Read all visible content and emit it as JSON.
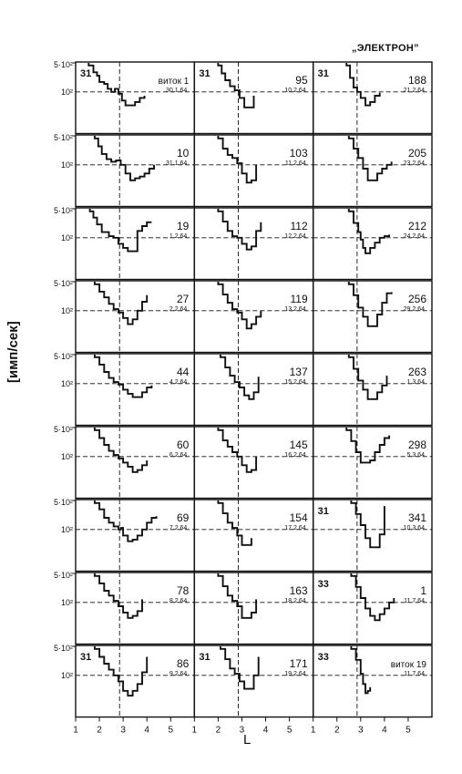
{
  "header": {
    "title": "„ЭЛЕКТРОН”",
    "y_axis_label": "[имп/сек]",
    "x_axis_label": "L",
    "y_tick_upper": "5·10²",
    "y_tick_lower": "10²"
  },
  "styles": {
    "ink": "#111111",
    "paper": "#ffffff"
  },
  "chart_data": {
    "type": "line",
    "layout": "small multiples, 9 rows x 3 columns",
    "xlabel": "L",
    "ylabel": "[имп/сек]",
    "xlim": [
      1,
      6
    ],
    "x_ticks_printed": [
      "1",
      "2",
      "3",
      "4",
      "5",
      "1",
      "2",
      "3",
      "4",
      "5",
      "1",
      "2",
      "3",
      "4",
      "5"
    ],
    "y_scale": "log",
    "ylim": [
      10,
      500
    ],
    "y_ticks": [
      "5·10²",
      "10²"
    ],
    "reference_lines": {
      "horizontal_y": 100,
      "vertical_x": 2.85
    },
    "panels": [
      {
        "orbit": "виток 1",
        "date": "30.1.64",
        "corner": "31",
        "x": [
          1.55,
          1.65,
          1.75,
          1.9,
          2.0,
          2.2,
          2.35,
          2.5,
          2.65,
          2.8,
          2.95,
          3.1,
          3.3,
          3.5,
          3.7,
          3.9
        ],
        "y": [
          480,
          480,
          320,
          260,
          180,
          160,
          120,
          100,
          120,
          90,
          60,
          45,
          45,
          55,
          70,
          80
        ]
      },
      {
        "orbit": "95",
        "date": "10.2.64",
        "corner": "31",
        "x": [
          2.0,
          2.15,
          2.3,
          2.5,
          2.7,
          2.9,
          3.1,
          3.3,
          3.5
        ],
        "y": [
          480,
          300,
          200,
          140,
          110,
          70,
          40,
          40,
          80
        ]
      },
      {
        "orbit": "188",
        "date": "21.2.64",
        "corner": "31",
        "x": [
          2.4,
          2.55,
          2.7,
          2.85,
          3.0,
          3.2,
          3.4,
          3.6,
          3.8
        ],
        "y": [
          480,
          230,
          130,
          100,
          70,
          45,
          55,
          80,
          95
        ]
      },
      {
        "orbit": "10",
        "date": "31.1.64",
        "corner": "",
        "x": [
          1.8,
          1.95,
          2.1,
          2.3,
          2.5,
          2.7,
          2.9,
          3.1,
          3.3,
          3.5,
          3.7,
          3.9,
          4.1,
          4.3
        ],
        "y": [
          480,
          300,
          190,
          140,
          120,
          130,
          100,
          60,
          40,
          45,
          50,
          60,
          80,
          100
        ]
      },
      {
        "orbit": "103",
        "date": "11.2.64",
        "corner": "",
        "x": [
          2.0,
          2.2,
          2.4,
          2.6,
          2.8,
          3.0,
          3.2,
          3.4,
          3.6
        ],
        "y": [
          480,
          260,
          180,
          150,
          110,
          60,
          35,
          40,
          100
        ]
      },
      {
        "orbit": "205",
        "date": "23.2.64",
        "corner": "",
        "x": [
          2.5,
          2.7,
          2.9,
          3.1,
          3.3,
          3.5,
          3.7,
          3.9,
          4.1,
          4.3
        ],
        "y": [
          480,
          260,
          150,
          80,
          40,
          40,
          60,
          80,
          100,
          120
        ]
      },
      {
        "orbit": "19",
        "date": "1.2.64",
        "corner": "",
        "x": [
          1.6,
          1.75,
          1.9,
          2.1,
          2.4,
          2.6,
          2.8,
          3.0,
          3.2,
          3.4,
          3.6,
          3.8,
          4.0,
          4.2
        ],
        "y": [
          480,
          330,
          220,
          140,
          110,
          100,
          70,
          55,
          45,
          45,
          150,
          200,
          250,
          250
        ]
      },
      {
        "orbit": "112",
        "date": "12.2.64",
        "corner": "",
        "x": [
          2.0,
          2.2,
          2.4,
          2.6,
          2.8,
          3.0,
          3.2,
          3.4,
          3.6,
          3.8
        ],
        "y": [
          480,
          260,
          150,
          110,
          100,
          70,
          50,
          60,
          150,
          250
        ]
      },
      {
        "orbit": "212",
        "date": "24.2.64",
        "corner": "",
        "x": [
          2.5,
          2.7,
          2.9,
          3.0,
          3.1,
          3.2,
          3.4,
          3.6,
          3.8,
          4.0,
          4.2
        ],
        "y": [
          480,
          240,
          140,
          90,
          55,
          40,
          55,
          75,
          100,
          110,
          120
        ]
      },
      {
        "orbit": "27",
        "date": "2.2.64",
        "corner": "",
        "x": [
          1.8,
          2.0,
          2.2,
          2.4,
          2.6,
          2.8,
          3.0,
          3.2,
          3.4,
          3.6,
          3.8,
          4.0
        ],
        "y": [
          480,
          310,
          220,
          150,
          110,
          90,
          65,
          45,
          60,
          100,
          170,
          250
        ]
      },
      {
        "orbit": "119",
        "date": "13.2.64",
        "corner": "",
        "x": [
          2.0,
          2.2,
          2.4,
          2.6,
          2.8,
          3.0,
          3.2,
          3.4,
          3.6,
          3.8
        ],
        "y": [
          480,
          260,
          160,
          110,
          90,
          60,
          35,
          45,
          70,
          100
        ]
      },
      {
        "orbit": "256",
        "date": "29.2.64",
        "corner": "",
        "x": [
          2.5,
          2.7,
          2.9,
          3.1,
          3.3,
          3.5,
          3.7,
          3.9,
          4.1,
          4.3
        ],
        "y": [
          480,
          250,
          120,
          70,
          40,
          40,
          80,
          160,
          280,
          300
        ]
      },
      {
        "orbit": "44",
        "date": "4.2.64",
        "corner": "",
        "x": [
          1.8,
          2.0,
          2.2,
          2.4,
          2.6,
          2.8,
          3.0,
          3.2,
          3.4,
          3.6,
          3.8,
          4.0,
          4.2
        ],
        "y": [
          480,
          310,
          200,
          140,
          110,
          95,
          70,
          55,
          45,
          45,
          60,
          80,
          90
        ]
      },
      {
        "orbit": "137",
        "date": "15.2.64",
        "corner": "",
        "x": [
          2.1,
          2.3,
          2.5,
          2.7,
          2.9,
          3.1,
          3.3,
          3.5,
          3.7
        ],
        "y": [
          480,
          260,
          160,
          110,
          80,
          50,
          40,
          60,
          150
        ]
      },
      {
        "orbit": "263",
        "date": "1.3.64",
        "corner": "",
        "x": [
          2.5,
          2.7,
          2.9,
          3.1,
          3.3,
          3.5,
          3.7,
          3.9,
          4.1
        ],
        "y": [
          480,
          240,
          120,
          70,
          40,
          40,
          60,
          90,
          160
        ]
      },
      {
        "orbit": "60",
        "date": "6.2.64",
        "corner": "",
        "x": [
          1.8,
          2.0,
          2.2,
          2.4,
          2.6,
          2.8,
          3.0,
          3.2,
          3.4,
          3.6,
          3.8,
          4.0
        ],
        "y": [
          480,
          300,
          200,
          140,
          110,
          90,
          70,
          55,
          40,
          45,
          60,
          80
        ]
      },
      {
        "orbit": "145",
        "date": "16.2.64",
        "corner": "",
        "x": [
          2.0,
          2.2,
          2.4,
          2.6,
          2.8,
          3.0,
          3.2,
          3.4,
          3.6
        ],
        "y": [
          480,
          260,
          180,
          130,
          100,
          60,
          40,
          45,
          100
        ]
      },
      {
        "orbit": "298",
        "date": "5.3.64",
        "corner": "",
        "x": [
          2.4,
          2.6,
          2.8,
          3.0,
          3.2,
          3.4,
          3.6,
          3.8,
          4.0,
          4.2
        ],
        "y": [
          480,
          250,
          130,
          70,
          70,
          80,
          130,
          200,
          300,
          350
        ]
      },
      {
        "orbit": "69",
        "date": "7.2.64",
        "corner": "",
        "x": [
          1.8,
          2.0,
          2.2,
          2.4,
          2.6,
          2.8,
          2.9,
          3.0,
          3.2,
          3.4,
          3.6,
          3.8,
          4.0,
          4.2,
          4.4
        ],
        "y": [
          480,
          330,
          200,
          150,
          120,
          100,
          110,
          70,
          50,
          55,
          70,
          100,
          150,
          200,
          220
        ]
      },
      {
        "orbit": "154",
        "date": "17.2.64",
        "corner": "",
        "x": [
          2.0,
          2.2,
          2.4,
          2.6,
          2.8,
          3.0,
          3.2,
          3.4
        ],
        "y": [
          480,
          260,
          150,
          110,
          70,
          40,
          40,
          60
        ]
      },
      {
        "orbit": "341",
        "date": "10.3.64",
        "corner": "31",
        "x": [
          2.6,
          2.8,
          3.0,
          3.2,
          3.4,
          3.6,
          3.8,
          4.0
        ],
        "y": [
          480,
          250,
          130,
          60,
          35,
          35,
          75,
          400
        ]
      },
      {
        "orbit": "78",
        "date": "8.2.64",
        "corner": "",
        "x": [
          1.8,
          2.0,
          2.2,
          2.4,
          2.6,
          2.8,
          3.0,
          3.2,
          3.4,
          3.6,
          3.8
        ],
        "y": [
          480,
          310,
          200,
          150,
          110,
          80,
          55,
          40,
          45,
          60,
          120
        ]
      },
      {
        "orbit": "163",
        "date": "18.2.64",
        "corner": "",
        "x": [
          2.0,
          2.2,
          2.4,
          2.6,
          2.8,
          3.0,
          3.2,
          3.4,
          3.6
        ],
        "y": [
          480,
          260,
          150,
          110,
          80,
          40,
          40,
          55,
          120
        ]
      },
      {
        "orbit": "1",
        "date": "11.7.64",
        "corner": "33",
        "x": [
          2.6,
          2.8,
          3.0,
          3.2,
          3.4,
          3.6,
          3.8,
          4.0,
          4.2,
          4.4
        ],
        "y": [
          480,
          250,
          130,
          70,
          45,
          35,
          50,
          70,
          100,
          130
        ]
      },
      {
        "orbit": "86",
        "date": "9.2.64",
        "corner": "31",
        "x": [
          1.8,
          2.0,
          2.2,
          2.4,
          2.6,
          2.8,
          3.0,
          3.2,
          3.4,
          3.6,
          3.8,
          4.0
        ],
        "y": [
          480,
          300,
          200,
          140,
          100,
          70,
          40,
          30,
          40,
          60,
          120,
          300
        ]
      },
      {
        "orbit": "171",
        "date": "19.2.64",
        "corner": "31",
        "x": [
          2.1,
          2.3,
          2.5,
          2.7,
          2.9,
          3.1,
          3.3,
          3.5,
          3.7
        ],
        "y": [
          480,
          260,
          150,
          110,
          70,
          45,
          45,
          100,
          300
        ]
      },
      {
        "orbit": "виток 19",
        "date": "11.7.64",
        "corner": "33",
        "x": [
          2.6,
          2.8,
          3.0,
          3.1,
          3.2,
          3.3,
          3.4
        ],
        "y": [
          480,
          250,
          110,
          60,
          35,
          40,
          50
        ]
      }
    ]
  }
}
